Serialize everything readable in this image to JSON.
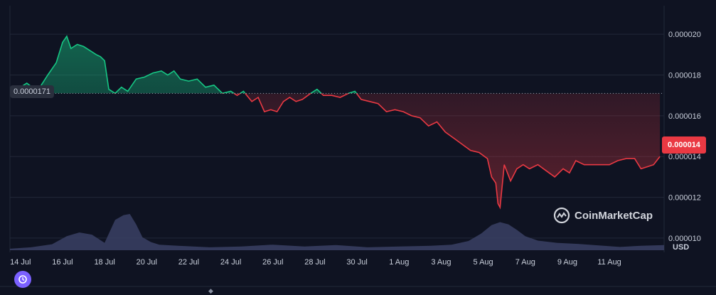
{
  "chart_data": {
    "type": "area",
    "currency": "USD",
    "base_value_label": "0.0000171",
    "current_value_label": "0.000014",
    "base_value": 1.71e-05,
    "current_value": 1.4e-05,
    "ylim": [
      9.3e-06,
      2.14e-05
    ],
    "y_ticks": [
      1e-05,
      1.2e-05,
      1.4e-05,
      1.6e-05,
      1.8e-05,
      2e-05
    ],
    "y_tick_labels": [
      "0.000010",
      "0.000012",
      "0.000014",
      "0.000016",
      "0.000018",
      "0.000020"
    ],
    "x_tick_labels": [
      "14 Jul",
      "16 Jul",
      "18 Jul",
      "20 Jul",
      "22 Jul",
      "24 Jul",
      "26 Jul",
      "28 Jul",
      "30 Jul",
      "1 Aug",
      "3 Aug",
      "5 Aug",
      "7 Aug",
      "9 Aug",
      "11 Aug"
    ],
    "x_tick_days": [
      0,
      2,
      4,
      6,
      8,
      10,
      12,
      14,
      16,
      18,
      20,
      22,
      24,
      26,
      28
    ],
    "x_range_days": [
      -0.5,
      30.6
    ],
    "price_series": {
      "days": [
        -0.3,
        0.3,
        0.8,
        1.3,
        1.7,
        2.0,
        2.2,
        2.4,
        2.7,
        3.0,
        3.3,
        3.6,
        3.8,
        4.0,
        4.2,
        4.5,
        4.8,
        5.1,
        5.5,
        5.9,
        6.3,
        6.7,
        7.0,
        7.3,
        7.6,
        8.0,
        8.4,
        8.8,
        9.2,
        9.6,
        10.0,
        10.3,
        10.6,
        11.0,
        11.3,
        11.6,
        11.9,
        12.2,
        12.5,
        12.8,
        13.1,
        13.4,
        13.8,
        14.1,
        14.4,
        14.8,
        15.2,
        15.6,
        15.9,
        16.2,
        16.6,
        17.0,
        17.4,
        17.8,
        18.2,
        18.6,
        19.0,
        19.4,
        19.8,
        20.2,
        20.6,
        21.0,
        21.4,
        21.8,
        22.2,
        22.4,
        22.6,
        22.7,
        22.8,
        23.0,
        23.3,
        23.6,
        23.9,
        24.2,
        24.6,
        25.0,
        25.4,
        25.8,
        26.1,
        26.4,
        26.8,
        27.2,
        27.6,
        28.0,
        28.4,
        28.8,
        29.2,
        29.5,
        29.8,
        30.1,
        30.4
      ],
      "values": [
        1.72e-05,
        1.76e-05,
        1.72e-05,
        1.8e-05,
        1.86e-05,
        1.96e-05,
        1.99e-05,
        1.93e-05,
        1.95e-05,
        1.94e-05,
        1.92e-05,
        1.9e-05,
        1.89e-05,
        1.87e-05,
        1.73e-05,
        1.71e-05,
        1.74e-05,
        1.72e-05,
        1.78e-05,
        1.79e-05,
        1.81e-05,
        1.82e-05,
        1.8e-05,
        1.82e-05,
        1.78e-05,
        1.77e-05,
        1.78e-05,
        1.74e-05,
        1.75e-05,
        1.71e-05,
        1.72e-05,
        1.7e-05,
        1.72e-05,
        1.67e-05,
        1.69e-05,
        1.62e-05,
        1.63e-05,
        1.62e-05,
        1.67e-05,
        1.69e-05,
        1.67e-05,
        1.68e-05,
        1.71e-05,
        1.73e-05,
        1.7e-05,
        1.7e-05,
        1.69e-05,
        1.71e-05,
        1.72e-05,
        1.68e-05,
        1.67e-05,
        1.66e-05,
        1.62e-05,
        1.63e-05,
        1.62e-05,
        1.6e-05,
        1.59e-05,
        1.55e-05,
        1.57e-05,
        1.52e-05,
        1.49e-05,
        1.46e-05,
        1.43e-05,
        1.42e-05,
        1.39e-05,
        1.3e-05,
        1.27e-05,
        1.17e-05,
        1.15e-05,
        1.36e-05,
        1.28e-05,
        1.34e-05,
        1.36e-05,
        1.34e-05,
        1.36e-05,
        1.33e-05,
        1.3e-05,
        1.34e-05,
        1.32e-05,
        1.38e-05,
        1.36e-05,
        1.36e-05,
        1.36e-05,
        1.36e-05,
        1.38e-05,
        1.39e-05,
        1.39e-05,
        1.34e-05,
        1.35e-05,
        1.36e-05,
        1.4e-05
      ]
    },
    "volume_series": {
      "days": [
        -0.5,
        0.5,
        1.5,
        2.2,
        2.8,
        3.4,
        4.0,
        4.5,
        4.9,
        5.2,
        5.5,
        5.8,
        6.2,
        6.6,
        7.5,
        9.0,
        10.5,
        12.0,
        13.5,
        15.0,
        16.5,
        18.0,
        19.5,
        20.5,
        21.3,
        21.9,
        22.4,
        22.8,
        23.2,
        23.6,
        24.0,
        24.6,
        25.5,
        26.5,
        27.5,
        28.5,
        29.5,
        30.6
      ],
      "relative": [
        0.04,
        0.08,
        0.16,
        0.38,
        0.48,
        0.42,
        0.2,
        0.82,
        0.95,
        0.98,
        0.7,
        0.35,
        0.22,
        0.15,
        0.12,
        0.08,
        0.1,
        0.15,
        0.1,
        0.14,
        0.08,
        0.1,
        0.12,
        0.15,
        0.25,
        0.45,
        0.68,
        0.76,
        0.7,
        0.55,
        0.38,
        0.26,
        0.2,
        0.17,
        0.13,
        0.09,
        0.12,
        0.14
      ]
    }
  },
  "labels": {
    "base": "0.0000171",
    "current": "0.000014",
    "unit": "USD",
    "watermark": "CoinMarketCap"
  },
  "colors": {
    "background": "#0f1322",
    "up": "#16c784",
    "down": "#ea3943",
    "volume": "#3a4164",
    "grid": "#222838"
  }
}
